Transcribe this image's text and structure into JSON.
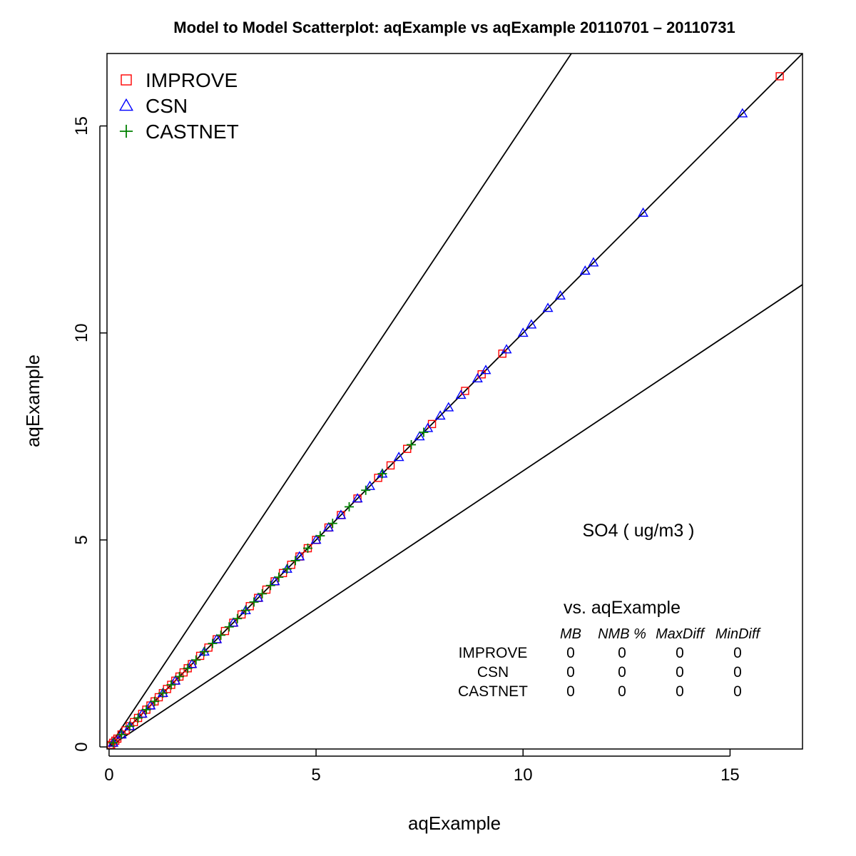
{
  "chart_data": {
    "type": "scatter",
    "title": "Model to Model Scatterplot: aqExample vs aqExample 20110701 – 20110731",
    "xlabel": "aqExample",
    "ylabel": "aqExample",
    "xlim": [
      0,
      16.8
    ],
    "ylim": [
      0,
      16.8
    ],
    "xticks": [
      0,
      5,
      10,
      15
    ],
    "yticks": [
      0,
      5,
      10,
      15
    ],
    "grid": false,
    "legend_position": "top-left",
    "reference_lines": [
      {
        "slope": 1.0
      },
      {
        "slope": 1.5
      },
      {
        "slope": 0.6667
      }
    ],
    "annotation": "SO4  ( ug/m3 )",
    "series": [
      {
        "name": "IMPROVE",
        "marker": "square",
        "color": "#ff0000",
        "x": [
          0.02,
          0.05,
          0.1,
          0.15,
          0.2,
          0.3,
          0.4,
          0.5,
          0.6,
          0.7,
          0.8,
          0.9,
          1.0,
          1.1,
          1.2,
          1.3,
          1.4,
          1.5,
          1.6,
          1.7,
          1.8,
          1.9,
          2.0,
          2.2,
          2.4,
          2.6,
          2.8,
          3.0,
          3.2,
          3.4,
          3.6,
          3.8,
          4.0,
          4.2,
          4.4,
          4.6,
          4.8,
          5.0,
          5.3,
          5.6,
          6.0,
          6.5,
          6.8,
          7.2,
          7.8,
          8.6,
          9.0,
          9.5,
          16.2
        ],
        "y": [
          0.02,
          0.05,
          0.1,
          0.15,
          0.2,
          0.3,
          0.4,
          0.5,
          0.6,
          0.7,
          0.8,
          0.9,
          1.0,
          1.1,
          1.2,
          1.3,
          1.4,
          1.5,
          1.6,
          1.7,
          1.8,
          1.9,
          2.0,
          2.2,
          2.4,
          2.6,
          2.8,
          3.0,
          3.2,
          3.4,
          3.6,
          3.8,
          4.0,
          4.2,
          4.4,
          4.6,
          4.8,
          5.0,
          5.3,
          5.6,
          6.0,
          6.5,
          6.8,
          7.2,
          7.8,
          8.6,
          9.0,
          9.5,
          16.2
        ]
      },
      {
        "name": "CSN",
        "marker": "triangle",
        "color": "#0000ff",
        "x": [
          0.1,
          0.3,
          0.5,
          0.8,
          1.0,
          1.3,
          1.6,
          2.0,
          2.3,
          2.6,
          3.0,
          3.3,
          3.6,
          4.0,
          4.3,
          4.6,
          5.0,
          5.3,
          5.6,
          6.0,
          6.3,
          6.6,
          7.0,
          7.5,
          7.7,
          8.0,
          8.2,
          8.5,
          8.9,
          9.1,
          9.6,
          10.0,
          10.2,
          10.6,
          10.9,
          11.5,
          11.7,
          12.9,
          15.3
        ],
        "y": [
          0.1,
          0.3,
          0.5,
          0.8,
          1.0,
          1.3,
          1.6,
          2.0,
          2.3,
          2.6,
          3.0,
          3.3,
          3.6,
          4.0,
          4.3,
          4.6,
          5.0,
          5.3,
          5.6,
          6.0,
          6.3,
          6.6,
          7.0,
          7.5,
          7.7,
          8.0,
          8.2,
          8.5,
          8.9,
          9.1,
          9.6,
          10.0,
          10.2,
          10.6,
          10.9,
          11.5,
          11.7,
          12.9,
          15.3
        ]
      },
      {
        "name": "CASTNET",
        "marker": "plus",
        "color": "#008000",
        "x": [
          0.1,
          0.3,
          0.5,
          0.7,
          0.9,
          1.1,
          1.3,
          1.5,
          1.7,
          1.9,
          2.1,
          2.3,
          2.5,
          2.7,
          2.9,
          3.1,
          3.3,
          3.5,
          3.7,
          3.9,
          4.1,
          4.3,
          4.5,
          4.8,
          5.1,
          5.4,
          5.8,
          6.2,
          6.6,
          7.3,
          7.6
        ],
        "y": [
          0.1,
          0.3,
          0.5,
          0.7,
          0.9,
          1.1,
          1.3,
          1.5,
          1.7,
          1.9,
          2.1,
          2.3,
          2.5,
          2.7,
          2.9,
          3.1,
          3.3,
          3.5,
          3.7,
          3.9,
          4.1,
          4.3,
          4.5,
          4.8,
          5.1,
          5.4,
          5.8,
          6.2,
          6.6,
          7.3,
          7.6
        ]
      }
    ],
    "stats_table": {
      "caption": "vs. aqExample",
      "columns": [
        "MB",
        "NMB %",
        "MaxDiff",
        "MinDiff"
      ],
      "rows": [
        {
          "name": "IMPROVE",
          "values": [
            "0",
            "0",
            "0",
            "0"
          ]
        },
        {
          "name": "CSN",
          "values": [
            "0",
            "0",
            "0",
            "0"
          ]
        },
        {
          "name": "CASTNET",
          "values": [
            "0",
            "0",
            "0",
            "0"
          ]
        }
      ]
    }
  }
}
